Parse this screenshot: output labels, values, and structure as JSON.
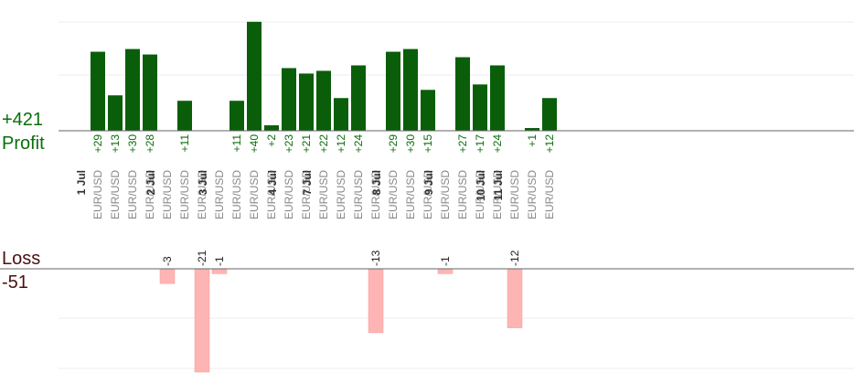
{
  "summary": {
    "profit_total": "+421",
    "profit_label": "Profit",
    "loss_label": "Loss",
    "loss_total": "-51"
  },
  "colors": {
    "profit_bar": "#0a5e0a",
    "profit_text": "#0a6e0a",
    "loss_bar": "#ffb4b4",
    "loss_text": "#222222",
    "date_text": "#333333",
    "symbol_text": "#888888",
    "grid": "#ececec",
    "axis": "#666666"
  },
  "chart_data": {
    "type": "bar",
    "grid": true,
    "profit_scale_max": 48,
    "loss_scale_max": 21,
    "slots": [
      {
        "date": "1 Jul",
        "symbol": "EUR/USD",
        "value": 29,
        "label": "+29"
      },
      {
        "date": "",
        "symbol": "EUR/USD",
        "value": 13,
        "label": "+13"
      },
      {
        "date": "",
        "symbol": "EUR/USD",
        "value": 30,
        "label": "+30"
      },
      {
        "date": "",
        "symbol": "EUR/USD",
        "value": 28,
        "label": "+28"
      },
      {
        "date": "2 Jul",
        "symbol": "EUR/USD",
        "value": -3,
        "label": "-3"
      },
      {
        "date": "",
        "symbol": "EUR/USD",
        "value": 11,
        "label": "+11"
      },
      {
        "date": "",
        "symbol": "EUR/USD",
        "value": -21,
        "label": "-21"
      },
      {
        "date": "3 Jul",
        "symbol": "EUR/USD",
        "value": -1,
        "label": "-1"
      },
      {
        "date": "",
        "symbol": "EUR/USD",
        "value": 11,
        "label": "+11"
      },
      {
        "date": "",
        "symbol": "EUR/USD",
        "value": 40,
        "label": "+40"
      },
      {
        "date": "",
        "symbol": "EUR/USD",
        "value": 2,
        "label": "+2"
      },
      {
        "date": "4 Jul",
        "symbol": "EUR/USD",
        "value": 23,
        "label": "+23"
      },
      {
        "date": "",
        "symbol": "EUR/USD",
        "value": 21,
        "label": "+21"
      },
      {
        "date": "7 Jul",
        "symbol": "EUR/USD",
        "value": 22,
        "label": "+22"
      },
      {
        "date": "",
        "symbol": "EUR/USD",
        "value": 12,
        "label": "+12"
      },
      {
        "date": "",
        "symbol": "EUR/USD",
        "value": 24,
        "label": "+24"
      },
      {
        "date": "",
        "symbol": "EUR/USD",
        "value": -13,
        "label": "-13"
      },
      {
        "date": "8 Jul",
        "symbol": "EUR/USD",
        "value": 29,
        "label": "+29"
      },
      {
        "date": "",
        "symbol": "EUR/USD",
        "value": 30,
        "label": "+30"
      },
      {
        "date": "",
        "symbol": "EUR/USD",
        "value": 15,
        "label": "+15"
      },
      {
        "date": "9 Jul",
        "symbol": "EUR/USD",
        "value": -1,
        "label": "-1"
      },
      {
        "date": "",
        "symbol": "EUR/USD",
        "value": 27,
        "label": "+27"
      },
      {
        "date": "",
        "symbol": "EUR/USD",
        "value": 17,
        "label": "+17"
      },
      {
        "date": "10 Jul",
        "symbol": "EUR/USD",
        "value": 24,
        "label": "+24"
      },
      {
        "date": "11 Jul",
        "symbol": "EUR/USD",
        "value": -12,
        "label": "-12"
      },
      {
        "date": "",
        "symbol": "EUR/USD",
        "value": 1,
        "label": "+1"
      },
      {
        "date": "",
        "symbol": "EUR/USD",
        "value": 12,
        "label": "+12"
      }
    ]
  }
}
